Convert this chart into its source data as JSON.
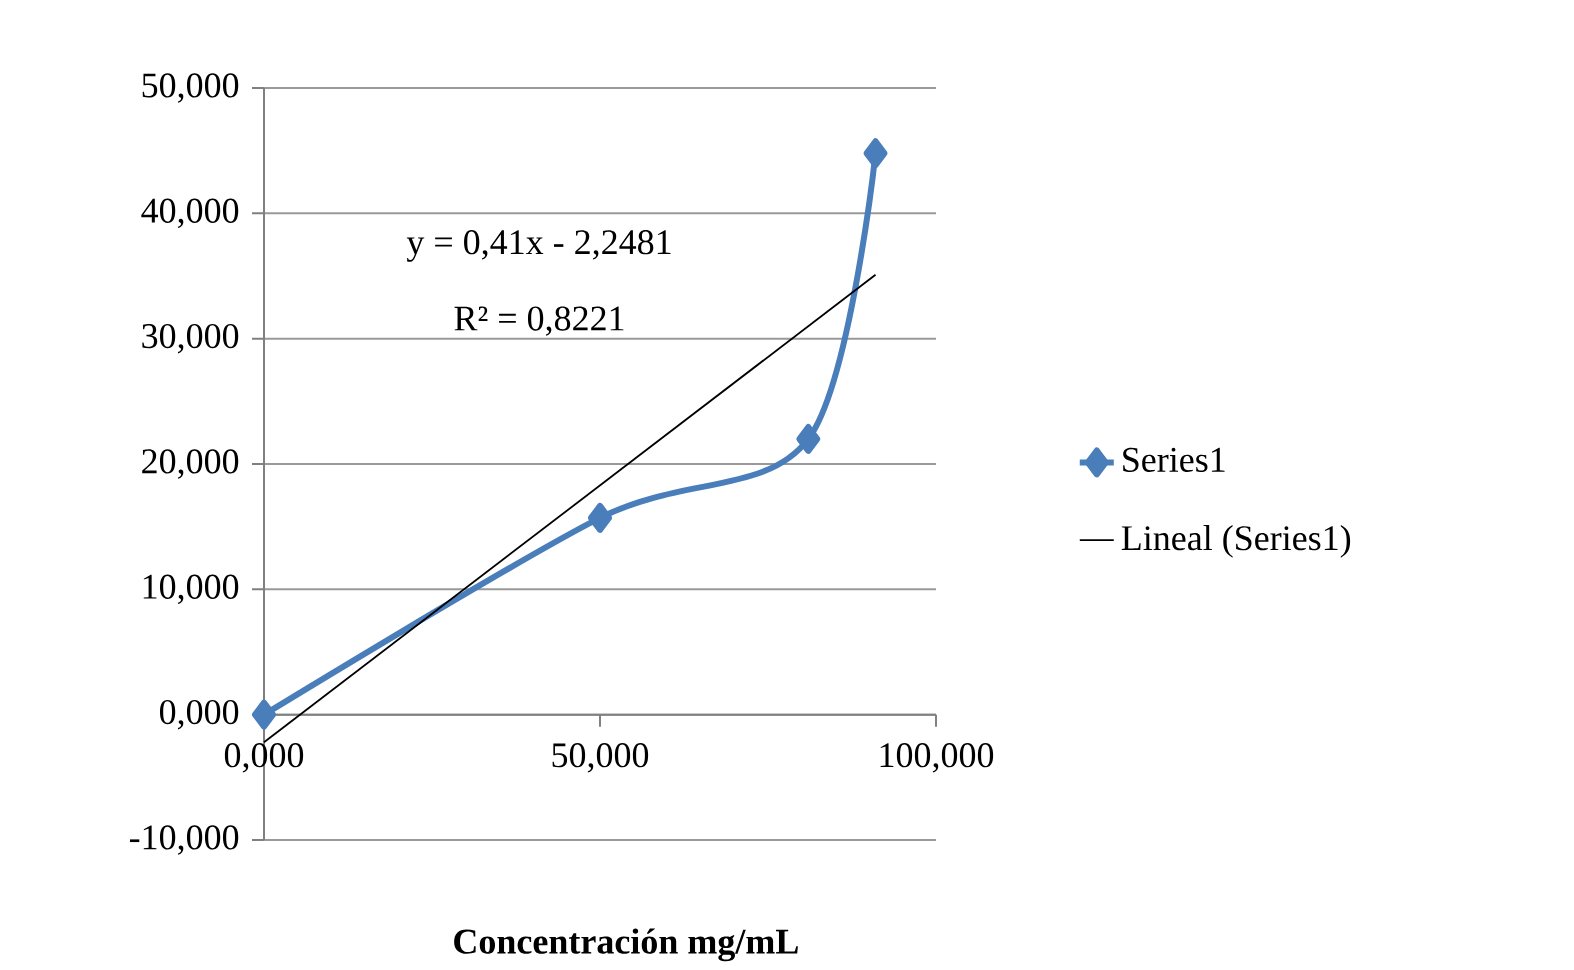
{
  "chart_data": {
    "type": "line",
    "xlabel": "Concentración mg/mL",
    "annotations": [
      "y = 0,41x - 2,2481",
      "R² = 0,8221"
    ],
    "series": [
      {
        "name": "Series1",
        "color": "#4a7ebb",
        "marker": "diamond",
        "x": [
          0,
          50,
          81,
          91
        ],
        "values": [
          0,
          15.7,
          22.0,
          44.8
        ]
      },
      {
        "name": "Lineal (Series1)",
        "color": "#000000",
        "marker": "none",
        "x": [
          0,
          91
        ],
        "values": [
          -2.2,
          35.1
        ]
      }
    ],
    "xlim": [
      0,
      100
    ],
    "ylim": [
      -10,
      50
    ],
    "xticks": [
      {
        "value": 0,
        "label": "0,000"
      },
      {
        "value": 50,
        "label": "50,000"
      },
      {
        "value": 100,
        "label": "100,000"
      }
    ],
    "yticks": [
      {
        "value": -10,
        "label": "-10,000"
      },
      {
        "value": 0,
        "label": "0,000"
      },
      {
        "value": 10,
        "label": "10,000"
      },
      {
        "value": 20,
        "label": "20,000"
      },
      {
        "value": 30,
        "label": "30,000"
      },
      {
        "value": 40,
        "label": "40,000"
      },
      {
        "value": 50,
        "label": "50,000"
      }
    ],
    "grid": "y",
    "legend": "right"
  }
}
